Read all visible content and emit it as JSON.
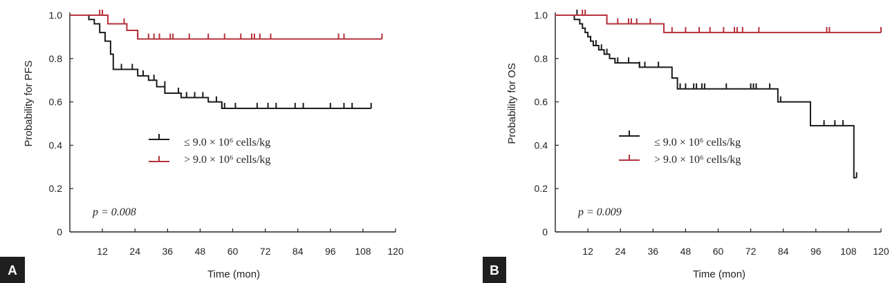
{
  "chart_data": [
    {
      "type": "line",
      "panel_label": "A",
      "xlabel": "Time (mon)",
      "ylabel": "Probability for PFS",
      "xlim": [
        0,
        120
      ],
      "ylim": [
        0,
        1.0
      ],
      "x_ticks": [
        12,
        24,
        36,
        48,
        60,
        72,
        84,
        96,
        108,
        120
      ],
      "x_tick_labels": [
        "12",
        "24",
        "36",
        "48",
        "60",
        "72",
        "84",
        "96",
        "108",
        "120"
      ],
      "y_ticks": [
        0,
        0.2,
        0.4,
        0.6,
        0.8,
        1.0
      ],
      "y_tick_labels": [
        "0",
        "0.2",
        "0.4",
        "0.6",
        "0.8",
        "1.0"
      ],
      "annotation": "p = 0.008",
      "legend_placement": "center",
      "series": [
        {
          "name": "≤ 9.0 × 10⁶ cells/kg",
          "color": "#1a1a1a",
          "steps": [
            [
              0,
              1.0
            ],
            [
              7,
              0.98
            ],
            [
              9,
              0.96
            ],
            [
              11,
              0.92
            ],
            [
              13,
              0.88
            ],
            [
              15,
              0.82
            ],
            [
              16,
              0.75
            ],
            [
              25,
              0.72
            ],
            [
              29,
              0.7
            ],
            [
              32,
              0.67
            ],
            [
              35,
              0.64
            ],
            [
              41,
              0.62
            ],
            [
              51,
              0.6
            ],
            [
              56,
              0.57
            ],
            [
              111,
              0.57
            ]
          ],
          "censored": [
            [
              19,
              0.75
            ],
            [
              23,
              0.75
            ],
            [
              27,
              0.72
            ],
            [
              31,
              0.7
            ],
            [
              35,
              0.67
            ],
            [
              40,
              0.64
            ],
            [
              43,
              0.62
            ],
            [
              46,
              0.62
            ],
            [
              49,
              0.62
            ],
            [
              54,
              0.6
            ],
            [
              56,
              0.57
            ],
            [
              57,
              0.57
            ],
            [
              61,
              0.57
            ],
            [
              69,
              0.57
            ],
            [
              73,
              0.57
            ],
            [
              76,
              0.57
            ],
            [
              83,
              0.57
            ],
            [
              86,
              0.57
            ],
            [
              96,
              0.57
            ],
            [
              101,
              0.57
            ],
            [
              104,
              0.57
            ],
            [
              111,
              0.57
            ]
          ]
        },
        {
          "name": "> 9.0 × 10⁶ cells/kg",
          "color": "#b5303a",
          "steps": [
            [
              0,
              1.0
            ],
            [
              14,
              0.96
            ],
            [
              21,
              0.93
            ],
            [
              25,
              0.89
            ],
            [
              115,
              0.89
            ]
          ],
          "censored": [
            [
              11,
              1.0
            ],
            [
              12,
              1.0
            ],
            [
              20,
              0.96
            ],
            [
              25,
              0.89
            ],
            [
              29,
              0.89
            ],
            [
              31,
              0.89
            ],
            [
              33,
              0.89
            ],
            [
              37,
              0.89
            ],
            [
              38,
              0.89
            ],
            [
              44,
              0.89
            ],
            [
              51,
              0.89
            ],
            [
              57,
              0.89
            ],
            [
              63,
              0.89
            ],
            [
              67,
              0.89
            ],
            [
              68,
              0.89
            ],
            [
              70,
              0.89
            ],
            [
              74,
              0.89
            ],
            [
              99,
              0.89
            ],
            [
              101,
              0.89
            ],
            [
              115,
              0.89
            ]
          ]
        }
      ]
    },
    {
      "type": "line",
      "panel_label": "B",
      "xlabel": "Time (mon)",
      "ylabel": "Probability for OS",
      "xlim": [
        0,
        120
      ],
      "ylim": [
        0,
        1.0
      ],
      "x_ticks": [
        12,
        24,
        36,
        48,
        60,
        72,
        84,
        96,
        108,
        120
      ],
      "x_tick_labels": [
        "12",
        "24",
        "36",
        "48",
        "60",
        "72",
        "84",
        "96",
        "108",
        "120"
      ],
      "y_ticks": [
        0,
        0.2,
        0.4,
        0.6,
        0.8,
        1.0
      ],
      "y_tick_labels": [
        "0",
        "0.2",
        "0.4",
        "0.6",
        "0.8",
        "1.0"
      ],
      "annotation": "p = 0.009",
      "legend_placement": "center",
      "series": [
        {
          "name": "≤ 9.0 × 10⁶ cells/kg",
          "color": "#1a1a1a",
          "steps": [
            [
              0,
              1.0
            ],
            [
              7,
              0.98
            ],
            [
              9,
              0.96
            ],
            [
              10,
              0.94
            ],
            [
              11,
              0.92
            ],
            [
              12,
              0.9
            ],
            [
              13,
              0.88
            ],
            [
              14,
              0.86
            ],
            [
              16,
              0.84
            ],
            [
              18,
              0.82
            ],
            [
              20,
              0.8
            ],
            [
              22,
              0.78
            ],
            [
              31,
              0.76
            ],
            [
              43,
              0.71
            ],
            [
              45,
              0.66
            ],
            [
              82,
              0.6
            ],
            [
              94,
              0.49
            ],
            [
              110,
              0.25
            ],
            [
              111,
              0.25
            ]
          ],
          "censored": [
            [
              8,
              1.0
            ],
            [
              13,
              0.88
            ],
            [
              15,
              0.86
            ],
            [
              17,
              0.84
            ],
            [
              19,
              0.82
            ],
            [
              23,
              0.78
            ],
            [
              27,
              0.78
            ],
            [
              31,
              0.76
            ],
            [
              33,
              0.76
            ],
            [
              38,
              0.76
            ],
            [
              46,
              0.66
            ],
            [
              48,
              0.66
            ],
            [
              51,
              0.66
            ],
            [
              52,
              0.66
            ],
            [
              54,
              0.66
            ],
            [
              55,
              0.66
            ],
            [
              63,
              0.66
            ],
            [
              72,
              0.66
            ],
            [
              73,
              0.66
            ],
            [
              74,
              0.66
            ],
            [
              79,
              0.66
            ],
            [
              83,
              0.6
            ],
            [
              99,
              0.49
            ],
            [
              103,
              0.49
            ],
            [
              106,
              0.49
            ],
            [
              111,
              0.25
            ]
          ]
        },
        {
          "name": "> 9.0 × 10⁶ cells/kg",
          "color": "#b5303a",
          "steps": [
            [
              0,
              1.0
            ],
            [
              19,
              0.96
            ],
            [
              40,
              0.92
            ],
            [
              120,
              0.92
            ]
          ],
          "censored": [
            [
              10,
              1.0
            ],
            [
              11,
              1.0
            ],
            [
              19,
              0.96
            ],
            [
              23,
              0.96
            ],
            [
              27,
              0.96
            ],
            [
              28,
              0.96
            ],
            [
              30,
              0.96
            ],
            [
              35,
              0.96
            ],
            [
              43,
              0.92
            ],
            [
              48,
              0.92
            ],
            [
              53,
              0.92
            ],
            [
              57,
              0.92
            ],
            [
              62,
              0.92
            ],
            [
              66,
              0.92
            ],
            [
              67,
              0.92
            ],
            [
              69,
              0.92
            ],
            [
              75,
              0.92
            ],
            [
              100,
              0.92
            ],
            [
              101,
              0.92
            ],
            [
              120,
              0.92
            ]
          ]
        }
      ]
    }
  ]
}
